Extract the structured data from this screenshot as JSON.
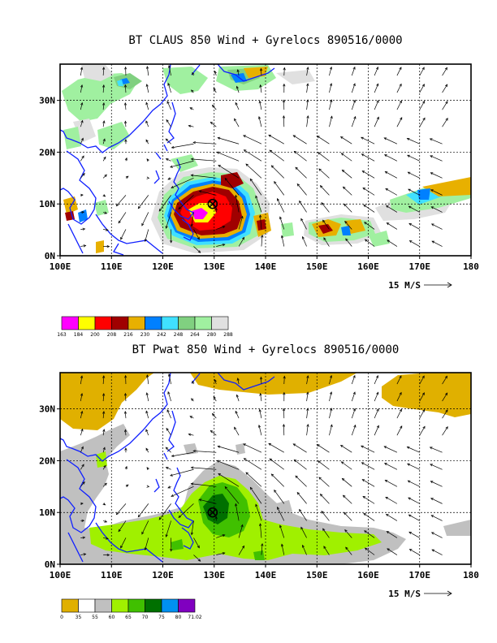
{
  "chart_data": [
    {
      "type": "heatmap",
      "title": "BT CLAUS 850 Wind + Gyrelocs 890516/0000",
      "x_ticks": [
        "100E",
        "110E",
        "120E",
        "130E",
        "140E",
        "150E",
        "160E",
        "170E",
        "180"
      ],
      "y_ticks": [
        "0N",
        "10N",
        "20N",
        "30N"
      ],
      "xlim": [
        100,
        180
      ],
      "ylim": [
        0,
        37
      ],
      "vector_reference": "15 M/S",
      "colorbar_labels": [
        "163",
        "184",
        "200",
        "208",
        "216",
        "230",
        "242",
        "248",
        "264",
        "280",
        "288"
      ],
      "colorbar_colors": [
        "#ff00ff",
        "#ffff00",
        "#ff0000",
        "#a00000",
        "#e8b000",
        "#0080ff",
        "#40e0ff",
        "#80d080",
        "#a0f0a0",
        "#e0e0e0"
      ],
      "gyre_center": {
        "lon": 129.7,
        "lat": 10
      }
    },
    {
      "type": "heatmap",
      "title": "BT Pwat 850 Wind + Gyrelocs 890516/0000",
      "x_ticks": [
        "100E",
        "110E",
        "120E",
        "130E",
        "140E",
        "150E",
        "160E",
        "170E",
        "180"
      ],
      "y_ticks": [
        "0N",
        "10N",
        "20N",
        "30N"
      ],
      "xlim": [
        100,
        180
      ],
      "ylim": [
        0,
        37
      ],
      "vector_reference": "15 M/S",
      "colorbar_labels": [
        "0",
        "35",
        "55",
        "60",
        "65",
        "70",
        "75",
        "80",
        "71.02"
      ],
      "colorbar_colors": [
        "#e0b000",
        "#ffffff",
        "#c0c0c0",
        "#a0f000",
        "#40c000",
        "#007000",
        "#0090f0",
        "#8000c0"
      ],
      "gyre_center": {
        "lon": 129.7,
        "lat": 10
      }
    }
  ]
}
